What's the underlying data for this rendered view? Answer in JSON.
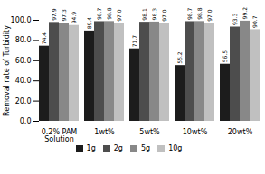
{
  "chart_data": {
    "type": "bar",
    "categories": [
      "0.2% PAM\nSolution",
      "1wt%",
      "5wt%",
      "10wt%",
      "20wt%"
    ],
    "series": [
      {
        "name": "1g",
        "color": "#1c1c1c",
        "values": [
          74.4,
          89.4,
          71.7,
          55.2,
          56.5
        ],
        "value_labels": [
          "74.4",
          "89.4",
          "71.7",
          "55.2",
          "56.5"
        ]
      },
      {
        "name": "2g",
        "color": "#4d4d4d",
        "values": [
          97.9,
          98.7,
          98.1,
          98.7,
          93.3
        ],
        "value_labels": [
          "97.9",
          "98.7",
          "98.1",
          "98.7",
          "93.3"
        ]
      },
      {
        "name": "5g",
        "color": "#888888",
        "values": [
          97.3,
          98.8,
          98.3,
          98.8,
          99.2
        ],
        "value_labels": [
          "97.3",
          "98.8",
          "98.3",
          "98.8",
          "99.2"
        ]
      },
      {
        "name": "10g",
        "color": "#c0c0c0",
        "values": [
          94.9,
          97.0,
          97.0,
          97.0,
          90.7
        ],
        "value_labels": [
          "94.9",
          "97.0",
          "97.0",
          "97.0",
          "90.7"
        ]
      }
    ],
    "ylabel": "Removal rate of Turbidity",
    "ylim": [
      0.0,
      100.0
    ],
    "yticks": [
      {
        "value": 0,
        "label": "0.0"
      },
      {
        "value": 20,
        "label": "20.0"
      },
      {
        "value": 40,
        "label": "40.0"
      },
      {
        "value": 60,
        "label": "60.0"
      },
      {
        "value": 80,
        "label": "80.0"
      },
      {
        "value": 100,
        "label": "100.0"
      }
    ],
    "data_labels": true,
    "legend": "bottom",
    "grid": false
  }
}
